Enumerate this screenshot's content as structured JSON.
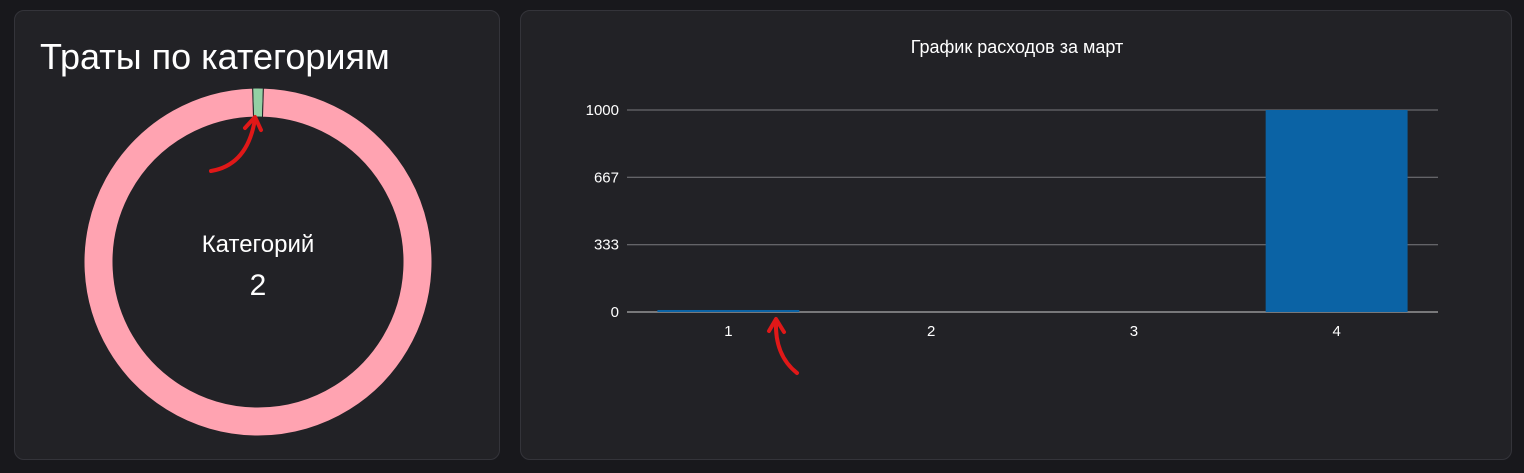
{
  "left_card": {
    "title": "Траты по категориям",
    "center_label": "Категорий",
    "center_value": "2"
  },
  "right_card": {
    "title": "График расходов за март"
  },
  "colors": {
    "background": "#18181c",
    "card": "#222226",
    "donut_main": "#ffa3b1",
    "donut_small": "#93d0a4",
    "bar": "#0b63a5",
    "annotation": "#e01818"
  },
  "chart_data": [
    {
      "type": "pie",
      "variant": "donut",
      "title": "Траты по категориям",
      "center_text": [
        "Категорий",
        "2"
      ],
      "slices": [
        {
          "value": 10,
          "color": "#93d0a4"
        },
        {
          "value": 1000,
          "color": "#ffa3b1"
        }
      ]
    },
    {
      "type": "bar",
      "title": "График расходов за март",
      "categories": [
        "1",
        "2",
        "3",
        "4"
      ],
      "values": [
        10,
        0,
        0,
        1000
      ],
      "yticks": [
        0,
        333,
        667,
        1000
      ],
      "ylim": [
        0,
        1000
      ],
      "grid": true,
      "bar_color": "#0b63a5"
    }
  ]
}
